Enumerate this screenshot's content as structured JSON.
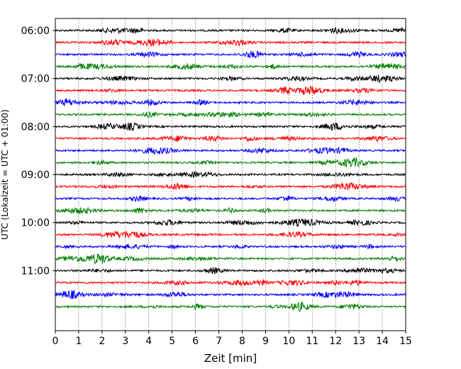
{
  "chart_data": {
    "type": "line",
    "xlabel": "Zeit  [min]",
    "ylabel": "UTC (Lokalzeit = UTC + 01:00)",
    "xlim": [
      0,
      15
    ],
    "x_ticks": [
      0,
      1,
      2,
      3,
      4,
      5,
      6,
      7,
      8,
      9,
      10,
      11,
      12,
      13,
      14,
      15
    ],
    "y_ticks": [
      "06:00",
      "07:00",
      "08:00",
      "09:00",
      "10:00",
      "11:00"
    ],
    "ylim": [
      "05:45",
      "12:15"
    ],
    "trace_interval_minutes": 15,
    "traces": [
      {
        "start": "06:00",
        "color": "#000000"
      },
      {
        "start": "06:15",
        "color": "#ff0000"
      },
      {
        "start": "06:30",
        "color": "#0000ff"
      },
      {
        "start": "06:45",
        "color": "#008000"
      },
      {
        "start": "07:00",
        "color": "#000000"
      },
      {
        "start": "07:15",
        "color": "#ff0000"
      },
      {
        "start": "07:30",
        "color": "#0000ff"
      },
      {
        "start": "07:45",
        "color": "#008000"
      },
      {
        "start": "08:00",
        "color": "#000000"
      },
      {
        "start": "08:15",
        "color": "#ff0000"
      },
      {
        "start": "08:30",
        "color": "#0000ff"
      },
      {
        "start": "08:45",
        "color": "#008000"
      },
      {
        "start": "09:00",
        "color": "#000000"
      },
      {
        "start": "09:15",
        "color": "#ff0000"
      },
      {
        "start": "09:30",
        "color": "#0000ff"
      },
      {
        "start": "09:45",
        "color": "#008000"
      },
      {
        "start": "10:00",
        "color": "#000000"
      },
      {
        "start": "10:15",
        "color": "#ff0000"
      },
      {
        "start": "10:30",
        "color": "#0000ff"
      },
      {
        "start": "10:45",
        "color": "#008000"
      },
      {
        "start": "11:00",
        "color": "#000000"
      },
      {
        "start": "11:15",
        "color": "#ff0000"
      },
      {
        "start": "11:30",
        "color": "#0000ff"
      },
      {
        "start": "11:45",
        "color": "#008000"
      }
    ],
    "vertical_grid": "dotted",
    "horizontal_grid": false
  }
}
